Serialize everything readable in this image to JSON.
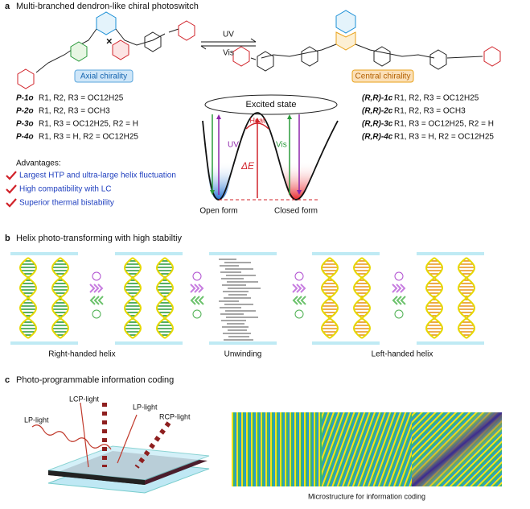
{
  "panel_a": {
    "label": "a",
    "title": "Multi-branched dendron-like chiral photoswitch",
    "axial": "Axial chirality",
    "central": "Central chirality",
    "arrow_labels": [
      "UV",
      "Vis"
    ],
    "compounds_left": [
      {
        "name": "P-1o",
        "formula": "R1, R2, R3 = OC12H25"
      },
      {
        "name": "P-2o",
        "formula": "R1, R2, R3 = OCH3"
      },
      {
        "name": "P-3o",
        "formula": "R1, R3 = OC12H25, R2 = H"
      },
      {
        "name": "P-4o",
        "formula": "R1, R3 = H, R2 = OC12H25"
      }
    ],
    "compounds_right": [
      {
        "name": "(R,R)-1c",
        "formula": "R1, R2, R3 = OC12H25"
      },
      {
        "name": "(R,R)-2c",
        "formula": "R1, R2, R3 = OCH3"
      },
      {
        "name": "(R,R)-3c",
        "formula": "R1, R3 = OC12H25, R2 = H"
      },
      {
        "name": "(R,R)-4c",
        "formula": "R1, R3 = H, R2 = OC12H25"
      }
    ],
    "diagram": {
      "excited": "Excited state",
      "uv": "UV",
      "vis": "Vis",
      "heat": "Heat",
      "delta": "ΔE",
      "open": "Open form",
      "closed": "Closed form"
    },
    "advantages_title": "Advantages:",
    "advantages": [
      "Largest HTP and ultra-large helix fluctuation",
      "High compatibility with LC",
      "Superior thermal bistability"
    ]
  },
  "panel_b": {
    "label": "b",
    "title": "Helix photo-transforming with high stabiltiy",
    "captions": [
      "Right-handed helix",
      "Unwinding",
      "Left-handed helix"
    ]
  },
  "panel_c": {
    "label": "c",
    "title": "Photo-programmable information coding",
    "lights": [
      "LP-light",
      "LCP-light",
      "LP-light",
      "RCP-light"
    ],
    "caption": "Microstructure for information coding"
  }
}
